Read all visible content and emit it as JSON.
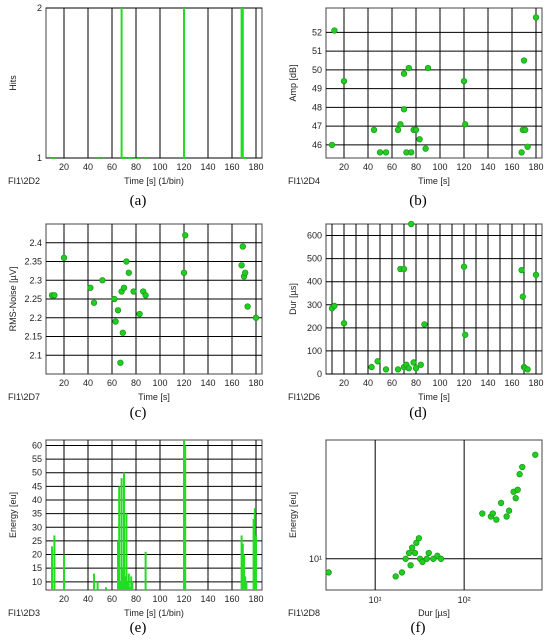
{
  "captions": [
    "(a)",
    "(b)",
    "(c)",
    "(d)",
    "(e)",
    "(f)"
  ],
  "colors": {
    "marker": "#22cc22",
    "marker_edge": "#119911",
    "bar": "#22dd22",
    "grid": "#000000",
    "axis": "#444444"
  },
  "chart_data": [
    {
      "id": "a",
      "type": "bar",
      "corner_label": "FI1\\2D2",
      "xlabel": "Time [s] (1/bin)",
      "ylabel": "Hits",
      "xlim": [
        5,
        185
      ],
      "ylim": [
        1,
        2
      ],
      "xticks": [
        20,
        40,
        60,
        80,
        100,
        120,
        140,
        160,
        180
      ],
      "yticks": [
        1,
        2
      ],
      "x": [
        10,
        12,
        48,
        53,
        68,
        69,
        70,
        71,
        74,
        76,
        80,
        82,
        88,
        120,
        121,
        168,
        169,
        170,
        171
      ],
      "values": [
        1,
        1,
        1,
        1,
        2,
        1,
        1,
        1,
        1,
        1,
        1,
        1,
        1,
        2,
        1,
        2,
        2,
        1,
        1
      ]
    },
    {
      "id": "b",
      "type": "scatter",
      "corner_label": "FI1\\2D4",
      "xlabel": "Time [s]",
      "ylabel": "Amp [dB]",
      "xlim": [
        5,
        185
      ],
      "ylim": [
        45.3,
        53.3
      ],
      "xticks": [
        20,
        40,
        60,
        80,
        100,
        120,
        140,
        160,
        180
      ],
      "yticks": [
        46,
        47,
        48,
        49,
        50,
        51,
        52
      ],
      "points": [
        [
          10,
          46
        ],
        [
          12,
          52.1
        ],
        [
          20,
          49.4
        ],
        [
          45,
          46.8
        ],
        [
          50,
          45.6
        ],
        [
          55,
          45.6
        ],
        [
          65,
          46.8
        ],
        [
          67,
          47.1
        ],
        [
          70,
          47.9
        ],
        [
          70,
          49.8
        ],
        [
          72,
          45.6
        ],
        [
          74,
          50.1
        ],
        [
          76,
          45.6
        ],
        [
          78,
          46.8
        ],
        [
          80,
          46.8
        ],
        [
          83,
          46.3
        ],
        [
          88,
          45.8
        ],
        [
          90,
          50.1
        ],
        [
          120,
          49.4
        ],
        [
          121,
          47.1
        ],
        [
          168,
          45.6
        ],
        [
          169,
          46.8
        ],
        [
          170,
          50.5
        ],
        [
          171,
          46.8
        ],
        [
          173,
          45.9
        ],
        [
          180,
          52.8
        ]
      ]
    },
    {
      "id": "c",
      "type": "scatter",
      "corner_label": "FI1\\2D7",
      "xlabel": "Time [s]",
      "ylabel": "RMS-Noise [µV]",
      "xlim": [
        5,
        185
      ],
      "ylim": [
        2.05,
        2.45
      ],
      "xticks": [
        20,
        40,
        60,
        80,
        100,
        120,
        140,
        160,
        180
      ],
      "yticks": [
        2.1,
        2.15,
        2.2,
        2.25,
        2.3,
        2.35,
        2.4
      ],
      "points": [
        [
          10,
          2.26
        ],
        [
          12,
          2.26
        ],
        [
          20,
          2.36
        ],
        [
          42,
          2.28
        ],
        [
          45,
          2.24
        ],
        [
          52,
          2.3
        ],
        [
          62,
          2.25
        ],
        [
          63,
          2.19
        ],
        [
          65,
          2.22
        ],
        [
          67,
          2.08
        ],
        [
          68,
          2.27
        ],
        [
          69,
          2.16
        ],
        [
          70,
          2.28
        ],
        [
          72,
          2.35
        ],
        [
          74,
          2.32
        ],
        [
          78,
          2.27
        ],
        [
          83,
          2.21
        ],
        [
          86,
          2.27
        ],
        [
          88,
          2.26
        ],
        [
          120,
          2.32
        ],
        [
          121,
          2.42
        ],
        [
          168,
          2.34
        ],
        [
          169,
          2.39
        ],
        [
          170,
          2.31
        ],
        [
          171,
          2.32
        ],
        [
          173,
          2.23
        ],
        [
          180,
          2.2
        ]
      ]
    },
    {
      "id": "d",
      "type": "scatter",
      "corner_label": "FI1\\2D6",
      "xlabel": "Time [s]",
      "ylabel": "Dur [µs]",
      "xlim": [
        5,
        185
      ],
      "ylim": [
        0,
        650
      ],
      "xticks": [
        10,
        20,
        30,
        40,
        50,
        60,
        70,
        80,
        90,
        100,
        110,
        120,
        130,
        140,
        150,
        160,
        170,
        180
      ],
      "yticks": [
        0,
        100,
        200,
        300,
        400,
        500,
        600
      ],
      "xticklabels": [
        20,
        40,
        60,
        80,
        100,
        120,
        140,
        160,
        180
      ],
      "points": [
        [
          10,
          285
        ],
        [
          12,
          295
        ],
        [
          20,
          220
        ],
        [
          43,
          30
        ],
        [
          48,
          55
        ],
        [
          55,
          20
        ],
        [
          65,
          20
        ],
        [
          67,
          455
        ],
        [
          70,
          455
        ],
        [
          70,
          30
        ],
        [
          72,
          40
        ],
        [
          74,
          25
        ],
        [
          76,
          650
        ],
        [
          78,
          50
        ],
        [
          80,
          25
        ],
        [
          84,
          40
        ],
        [
          87,
          215
        ],
        [
          120,
          465
        ],
        [
          121,
          170
        ],
        [
          168,
          450
        ],
        [
          169,
          335
        ],
        [
          170,
          30
        ],
        [
          171,
          25
        ],
        [
          173,
          20
        ],
        [
          180,
          430
        ]
      ]
    },
    {
      "id": "e",
      "type": "bar",
      "corner_label": "FI1\\2D3",
      "xlabel": "Time [s] (1/bin)",
      "ylabel": "Energy [eu]",
      "xlim": [
        5,
        185
      ],
      "ylim": [
        7,
        62
      ],
      "xticks": [
        20,
        40,
        60,
        80,
        100,
        120,
        140,
        160,
        180
      ],
      "yticks": [
        10,
        15,
        20,
        25,
        30,
        35,
        40,
        45,
        50,
        55,
        60
      ],
      "x": [
        10,
        12,
        20,
        45,
        48,
        55,
        65,
        66,
        67,
        68,
        69,
        70,
        71,
        72,
        73,
        74,
        75,
        76,
        77,
        88,
        120,
        121,
        168,
        169,
        170,
        171,
        172,
        178,
        179,
        180
      ],
      "values": [
        23,
        27,
        20,
        13,
        10,
        8,
        25,
        45,
        10,
        48,
        15,
        50,
        12,
        35,
        10,
        13,
        8,
        12,
        10,
        21,
        62,
        60,
        27,
        24,
        20,
        12,
        10,
        33,
        37,
        27
      ]
    },
    {
      "id": "f",
      "type": "scatter",
      "corner_label": "FI1\\2D8",
      "xlabel": "Dur [µs]",
      "ylabel": "Energy [eu]",
      "xscale": "log",
      "yscale": "log",
      "xlim": [
        2.8,
        750
      ],
      "ylim": [
        6,
        70
      ],
      "xtick_labels": [
        "10¹",
        "10²"
      ],
      "ytick_labels": [
        "10¹"
      ],
      "points": [
        [
          3,
          8
        ],
        [
          17,
          7.5
        ],
        [
          20,
          8
        ],
        [
          22,
          10
        ],
        [
          24,
          11
        ],
        [
          25,
          9
        ],
        [
          26,
          12
        ],
        [
          28,
          11
        ],
        [
          29,
          13
        ],
        [
          31,
          14
        ],
        [
          32,
          10
        ],
        [
          34,
          9.5
        ],
        [
          38,
          10
        ],
        [
          40,
          11
        ],
        [
          45,
          10
        ],
        [
          50,
          10.5
        ],
        [
          55,
          10
        ],
        [
          160,
          21
        ],
        [
          200,
          20
        ],
        [
          210,
          21
        ],
        [
          230,
          19
        ],
        [
          260,
          25
        ],
        [
          300,
          20
        ],
        [
          320,
          22
        ],
        [
          360,
          30
        ],
        [
          380,
          27
        ],
        [
          400,
          31
        ],
        [
          420,
          40
        ],
        [
          450,
          45
        ],
        [
          630,
          55
        ]
      ]
    }
  ]
}
